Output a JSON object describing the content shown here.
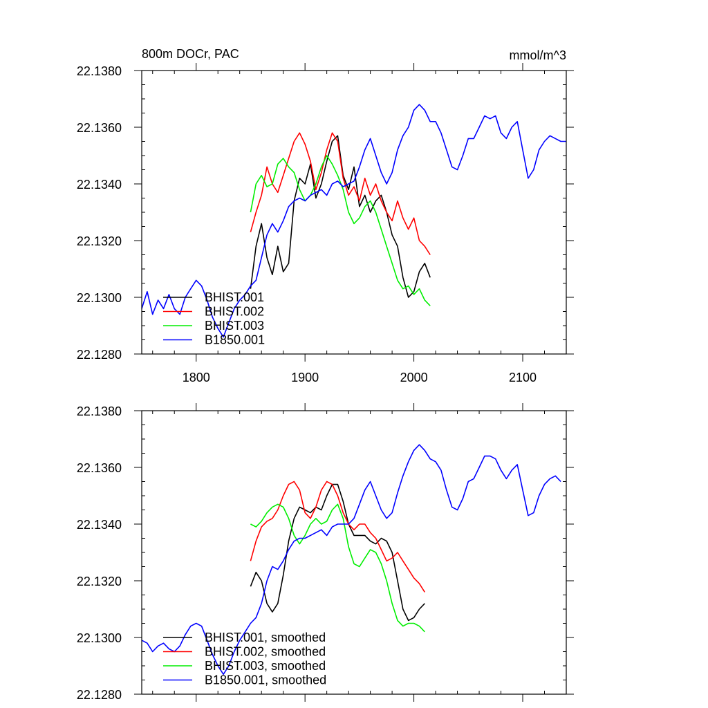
{
  "chart_data": [
    {
      "type": "line",
      "title": "800m DOCr, PAC",
      "units": "mmol/m^3",
      "xlim": [
        1750,
        2140
      ],
      "ylim": [
        22.128,
        22.138
      ],
      "x_ticks": [
        1800,
        1900,
        2000,
        2100
      ],
      "x_tick_labels": [
        "1800",
        "1900",
        "2000",
        "2100"
      ],
      "y_ticks": [
        22.128,
        22.13,
        22.132,
        22.134,
        22.136,
        22.138
      ],
      "y_tick_labels": [
        "22.1280",
        "22.1300",
        "22.1320",
        "22.1340",
        "22.1360",
        "22.1380"
      ],
      "grid": false,
      "legend_position": "bottom-left",
      "series": [
        {
          "name": "BHIST.001",
          "color": "#000000",
          "x": [
            1850,
            1855,
            1860,
            1865,
            1870,
            1875,
            1880,
            1885,
            1890,
            1895,
            1900,
            1905,
            1910,
            1915,
            1920,
            1925,
            1930,
            1935,
            1940,
            1945,
            1950,
            1955,
            1960,
            1965,
            1970,
            1975,
            1980,
            1985,
            1990,
            1995,
            2000,
            2005,
            2010,
            2015
          ],
          "values": [
            22.1303,
            22.1318,
            22.1326,
            22.1314,
            22.1308,
            22.1318,
            22.1309,
            22.1312,
            22.1334,
            22.1342,
            22.134,
            22.1347,
            22.1335,
            22.134,
            22.1348,
            22.1355,
            22.1357,
            22.1343,
            22.1338,
            22.1346,
            22.1332,
            22.1336,
            22.133,
            22.1334,
            22.1336,
            22.133,
            22.1322,
            22.1318,
            22.1307,
            22.13,
            22.1302,
            22.1309,
            22.1312,
            22.1307
          ]
        },
        {
          "name": "BHIST.002",
          "color": "#ff0000",
          "x": [
            1850,
            1855,
            1860,
            1865,
            1870,
            1875,
            1880,
            1885,
            1890,
            1895,
            1900,
            1905,
            1910,
            1915,
            1920,
            1925,
            1930,
            1935,
            1940,
            1945,
            1950,
            1955,
            1960,
            1965,
            1970,
            1975,
            1980,
            1985,
            1990,
            1995,
            2000,
            2005,
            2010,
            2015
          ],
          "values": [
            22.1323,
            22.133,
            22.1336,
            22.1346,
            22.134,
            22.1337,
            22.1343,
            22.1349,
            22.1355,
            22.1358,
            22.1354,
            22.1348,
            22.1338,
            22.1344,
            22.1352,
            22.1358,
            22.1355,
            22.1342,
            22.1336,
            22.1339,
            22.1334,
            22.1342,
            22.1336,
            22.134,
            22.1334,
            22.133,
            22.1327,
            22.1334,
            22.1328,
            22.1324,
            22.1328,
            22.132,
            22.1318,
            22.1315
          ]
        },
        {
          "name": "BHIST.003",
          "color": "#00ee00",
          "x": [
            1850,
            1855,
            1860,
            1865,
            1870,
            1875,
            1880,
            1885,
            1890,
            1895,
            1900,
            1905,
            1910,
            1915,
            1920,
            1925,
            1930,
            1935,
            1940,
            1945,
            1950,
            1955,
            1960,
            1965,
            1970,
            1975,
            1980,
            1985,
            1990,
            1995,
            2000,
            2005,
            2010,
            2015
          ],
          "values": [
            22.133,
            22.134,
            22.1343,
            22.1339,
            22.134,
            22.1347,
            22.1349,
            22.1346,
            22.1344,
            22.1338,
            22.1334,
            22.1336,
            22.134,
            22.1346,
            22.135,
            22.1347,
            22.1343,
            22.1338,
            22.133,
            22.1326,
            22.1328,
            22.1332,
            22.1334,
            22.133,
            22.1324,
            22.1318,
            22.1312,
            22.1306,
            22.1303,
            22.1304,
            22.1301,
            22.1303,
            22.1299,
            22.1297
          ]
        },
        {
          "name": "B1850.001",
          "color": "#0000ff",
          "x": [
            1750,
            1755,
            1760,
            1765,
            1770,
            1775,
            1780,
            1785,
            1790,
            1795,
            1800,
            1805,
            1810,
            1815,
            1820,
            1825,
            1830,
            1835,
            1840,
            1845,
            1850,
            1855,
            1860,
            1865,
            1870,
            1875,
            1880,
            1885,
            1890,
            1895,
            1900,
            1905,
            1910,
            1915,
            1920,
            1925,
            1930,
            1935,
            1940,
            1945,
            1950,
            1955,
            1960,
            1965,
            1970,
            1975,
            1980,
            1985,
            1990,
            1995,
            2000,
            2005,
            2010,
            2015,
            2020,
            2025,
            2030,
            2035,
            2040,
            2045,
            2050,
            2055,
            2060,
            2065,
            2070,
            2075,
            2080,
            2085,
            2090,
            2095,
            2100,
            2105,
            2110,
            2115,
            2120,
            2125,
            2130,
            2135,
            2140
          ],
          "values": [
            22.1296,
            22.1302,
            22.1294,
            22.1299,
            22.1296,
            22.1301,
            22.1296,
            22.1294,
            22.13,
            22.1303,
            22.1306,
            22.1304,
            22.1299,
            22.1293,
            22.1289,
            22.1286,
            22.1291,
            22.1296,
            22.1299,
            22.1301,
            22.1304,
            22.1306,
            22.1314,
            22.1322,
            22.1326,
            22.1323,
            22.1327,
            22.1332,
            22.1334,
            22.1335,
            22.1334,
            22.1336,
            22.1337,
            22.1338,
            22.1336,
            22.134,
            22.1341,
            22.1339,
            22.134,
            22.1341,
            22.1346,
            22.1352,
            22.1356,
            22.135,
            22.1344,
            22.134,
            22.1344,
            22.1352,
            22.1357,
            22.136,
            22.1366,
            22.1368,
            22.1366,
            22.1362,
            22.1362,
            22.1358,
            22.1352,
            22.1346,
            22.1345,
            22.135,
            22.1356,
            22.1356,
            22.136,
            22.1364,
            22.1363,
            22.1364,
            22.1358,
            22.1356,
            22.136,
            22.1362,
            22.1352,
            22.1342,
            22.1345,
            22.1352,
            22.1355,
            22.1357,
            22.1356,
            22.1355,
            22.1355
          ]
        }
      ]
    },
    {
      "type": "line",
      "title": "",
      "xlim": [
        1750,
        2140
      ],
      "ylim": [
        22.128,
        22.138
      ],
      "x_ticks": [
        1800,
        1900,
        2000,
        2100
      ],
      "y_ticks": [
        22.128,
        22.13,
        22.132,
        22.134,
        22.136,
        22.138
      ],
      "y_tick_labels": [
        "22.1280",
        "22.1300",
        "22.1320",
        "22.1340",
        "22.1360",
        "22.1380"
      ],
      "grid": false,
      "legend_position": "bottom-left",
      "series": [
        {
          "name": "BHIST.001, smoothed",
          "color": "#000000",
          "x": [
            1850,
            1855,
            1860,
            1865,
            1870,
            1875,
            1880,
            1885,
            1890,
            1895,
            1900,
            1905,
            1910,
            1915,
            1920,
            1925,
            1930,
            1935,
            1940,
            1945,
            1950,
            1955,
            1960,
            1965,
            1970,
            1975,
            1980,
            1985,
            1990,
            1995,
            2000,
            2005,
            2010
          ],
          "values": [
            22.1318,
            22.1323,
            22.132,
            22.1312,
            22.1309,
            22.1312,
            22.1322,
            22.1334,
            22.1342,
            22.1346,
            22.1345,
            22.1344,
            22.1346,
            22.1345,
            22.135,
            22.1354,
            22.1354,
            22.1348,
            22.134,
            22.1336,
            22.1336,
            22.1336,
            22.1334,
            22.1333,
            22.1335,
            22.1334,
            22.133,
            22.132,
            22.131,
            22.1306,
            22.1307,
            22.131,
            22.1312
          ]
        },
        {
          "name": "BHIST.002, smoothed",
          "color": "#ff0000",
          "x": [
            1850,
            1855,
            1860,
            1865,
            1870,
            1875,
            1880,
            1885,
            1890,
            1895,
            1900,
            1905,
            1910,
            1915,
            1920,
            1925,
            1930,
            1935,
            1940,
            1945,
            1950,
            1955,
            1960,
            1965,
            1970,
            1975,
            1980,
            1985,
            1990,
            1995,
            2000,
            2005,
            2010
          ],
          "values": [
            22.1327,
            22.1334,
            22.1339,
            22.1341,
            22.1342,
            22.1345,
            22.135,
            22.1354,
            22.1355,
            22.1352,
            22.1344,
            22.1342,
            22.1346,
            22.1352,
            22.1355,
            22.1354,
            22.135,
            22.1344,
            22.134,
            22.1338,
            22.134,
            22.134,
            22.1337,
            22.1335,
            22.1331,
            22.1327,
            22.1328,
            22.133,
            22.1327,
            22.1324,
            22.1321,
            22.1319,
            22.1316
          ]
        },
        {
          "name": "BHIST.003, smoothed",
          "color": "#00ee00",
          "x": [
            1850,
            1855,
            1860,
            1865,
            1870,
            1875,
            1880,
            1885,
            1890,
            1895,
            1900,
            1905,
            1910,
            1915,
            1920,
            1925,
            1930,
            1935,
            1940,
            1945,
            1950,
            1955,
            1960,
            1965,
            1970,
            1975,
            1980,
            1985,
            1990,
            1995,
            2000,
            2005,
            2010
          ],
          "values": [
            22.134,
            22.1339,
            22.1341,
            22.1344,
            22.1346,
            22.1347,
            22.1346,
            22.1342,
            22.1336,
            22.1333,
            22.1336,
            22.134,
            22.1342,
            22.134,
            22.1341,
            22.1345,
            22.1347,
            22.1342,
            22.1332,
            22.1326,
            22.1325,
            22.1328,
            22.1331,
            22.133,
            22.1326,
            22.132,
            22.1312,
            22.1306,
            22.1304,
            22.1305,
            22.1305,
            22.1304,
            22.1302
          ]
        },
        {
          "name": "B1850.001, smoothed",
          "color": "#0000ff",
          "x": [
            1750,
            1755,
            1760,
            1765,
            1770,
            1775,
            1780,
            1785,
            1790,
            1795,
            1800,
            1805,
            1810,
            1815,
            1820,
            1825,
            1830,
            1835,
            1840,
            1845,
            1850,
            1855,
            1860,
            1865,
            1870,
            1875,
            1880,
            1885,
            1890,
            1895,
            1900,
            1905,
            1910,
            1915,
            1920,
            1925,
            1930,
            1935,
            1940,
            1945,
            1950,
            1955,
            1960,
            1965,
            1970,
            1975,
            1980,
            1985,
            1990,
            1995,
            2000,
            2005,
            2010,
            2015,
            2020,
            2025,
            2030,
            2035,
            2040,
            2045,
            2050,
            2055,
            2060,
            2065,
            2070,
            2075,
            2080,
            2085,
            2090,
            2095,
            2100,
            2105,
            2110,
            2115,
            2120,
            2125,
            2130,
            2135
          ],
          "values": [
            22.1299,
            22.1298,
            22.1295,
            22.1297,
            22.1298,
            22.1296,
            22.1295,
            22.1297,
            22.1301,
            22.1304,
            22.1305,
            22.1304,
            22.1299,
            22.1294,
            22.129,
            22.1287,
            22.129,
            22.1295,
            22.1299,
            22.1302,
            22.1305,
            22.1307,
            22.1312,
            22.132,
            22.1325,
            22.1324,
            22.1327,
            22.1331,
            22.1334,
            22.1335,
            22.1335,
            22.1336,
            22.1337,
            22.1338,
            22.1336,
            22.1339,
            22.134,
            22.134,
            22.134,
            22.1342,
            22.1347,
            22.1352,
            22.1355,
            22.135,
            22.1345,
            22.1342,
            22.1344,
            22.1351,
            22.1357,
            22.1362,
            22.1366,
            22.1368,
            22.1366,
            22.1363,
            22.1362,
            22.1359,
            22.1352,
            22.1346,
            22.1345,
            22.1349,
            22.1355,
            22.1356,
            22.136,
            22.1364,
            22.1364,
            22.1363,
            22.1359,
            22.1356,
            22.1359,
            22.1361,
            22.1352,
            22.1343,
            22.1344,
            22.135,
            22.1354,
            22.1356,
            22.1357,
            22.1355
          ]
        }
      ]
    }
  ]
}
